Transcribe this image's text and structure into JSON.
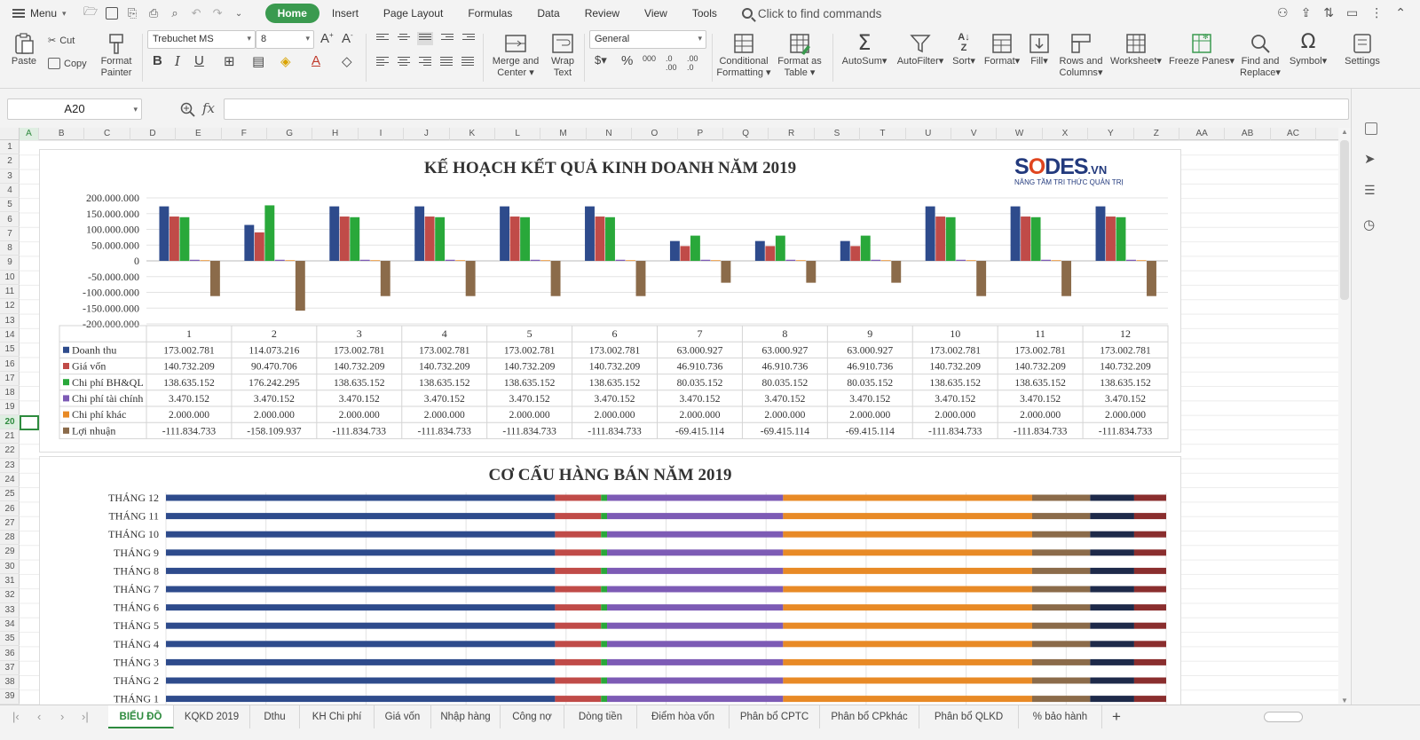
{
  "menubar": {
    "menu_label": "Menu",
    "tabs": [
      {
        "label": "Home",
        "active": true
      },
      {
        "label": "Insert"
      },
      {
        "label": "Page Layout"
      },
      {
        "label": "Formulas"
      },
      {
        "label": "Data"
      },
      {
        "label": "Review"
      },
      {
        "label": "View"
      },
      {
        "label": "Tools"
      }
    ],
    "find_commands": "Click to find commands"
  },
  "ribbon": {
    "paste": "Paste",
    "cut": "Cut",
    "copy": "Copy",
    "format_painter_1": "Format",
    "format_painter_2": "Painter",
    "font_name": "Trebuchet MS",
    "font_size": "8",
    "merge_1": "Merge and",
    "merge_2": "Center",
    "wrap_1": "Wrap",
    "wrap_2": "Text",
    "number_format": "General",
    "cond_1": "Conditional",
    "cond_2": "Formatting",
    "fmt_table_1": "Format as",
    "fmt_table_2": "Table",
    "autosum": "AutoSum",
    "autofilter": "AutoFilter",
    "sort": "Sort",
    "format": "Format",
    "fill": "Fill",
    "rows_cols_1": "Rows and",
    "rows_cols_2": "Columns",
    "worksheet": "Worksheet",
    "freeze": "Freeze Panes",
    "find_1": "Find and",
    "find_2": "Replace",
    "symbol": "Symbol",
    "settings": "Settings"
  },
  "formula_bar": {
    "name_box": "A20",
    "fx": "fx",
    "formula": ""
  },
  "columns": [
    "A",
    "B",
    "C",
    "D",
    "E",
    "F",
    "G",
    "H",
    "I",
    "J",
    "K",
    "L",
    "M",
    "N",
    "O",
    "P",
    "Q",
    "R",
    "S",
    "T",
    "U",
    "V",
    "W",
    "X",
    "Y",
    "Z",
    "AA",
    "AB",
    "AC"
  ],
  "selected_column": "A",
  "rows": [
    "1",
    "2",
    "3",
    "4",
    "5",
    "6",
    "7",
    "8",
    "9",
    "10",
    "11",
    "12",
    "13",
    "14",
    "15",
    "16",
    "17",
    "18",
    "19",
    "20",
    "21",
    "22",
    "23",
    "24",
    "25",
    "26",
    "27",
    "28",
    "29",
    "30",
    "31",
    "32",
    "33",
    "34",
    "35",
    "36",
    "37",
    "38",
    "39"
  ],
  "selected_row": "20",
  "logo": {
    "s": "S",
    "o": "O",
    "rest": "DES",
    "vn": ".VN",
    "tagline": "NÂNG TẦM TRI THỨC QUẢN TRỊ"
  },
  "colors": {
    "doanh_thu": "#2e4b8c",
    "gia_von": "#c04b48",
    "bh_ql": "#29a83a",
    "tai_chinh": "#7d5bb5",
    "khac": "#e88a26",
    "loi_nhuan": "#8b6b4a",
    "accent": "#3a9a4f"
  },
  "chart_data": [
    {
      "type": "bar",
      "title": "KẾ HOẠCH KẾT QUẢ KINH DOANH NĂM 2019",
      "categories": [
        "1",
        "2",
        "3",
        "4",
        "5",
        "6",
        "7",
        "8",
        "9",
        "10",
        "11",
        "12"
      ],
      "ylim": [
        -200000000,
        200000000
      ],
      "yticks": [
        "200.000.000",
        "150.000.000",
        "100.000.000",
        "50.000.000",
        "0",
        "-50.000.000",
        "-100.000.000",
        "-150.000.000",
        "-200.000.000"
      ],
      "grid": true,
      "legend": "data-table",
      "series": [
        {
          "name": "Doanh thu",
          "values": [
            173002781,
            114073216,
            173002781,
            173002781,
            173002781,
            173002781,
            63000927,
            63000927,
            63000927,
            173002781,
            173002781,
            173002781
          ],
          "labels": [
            "173.002.781",
            "114.073.216",
            "173.002.781",
            "173.002.781",
            "173.002.781",
            "173.002.781",
            "63.000.927",
            "63.000.927",
            "63.000.927",
            "173.002.781",
            "173.002.781",
            "173.002.781"
          ]
        },
        {
          "name": "Giá vốn",
          "values": [
            140732209,
            90470706,
            140732209,
            140732209,
            140732209,
            140732209,
            46910736,
            46910736,
            46910736,
            140732209,
            140732209,
            140732209
          ],
          "labels": [
            "140.732.209",
            "90.470.706",
            "140.732.209",
            "140.732.209",
            "140.732.209",
            "140.732.209",
            "46.910.736",
            "46.910.736",
            "46.910.736",
            "140.732.209",
            "140.732.209",
            "140.732.209"
          ]
        },
        {
          "name": "Chi phí BH&QL",
          "values": [
            138635152,
            176242295,
            138635152,
            138635152,
            138635152,
            138635152,
            80035152,
            80035152,
            80035152,
            138635152,
            138635152,
            138635152
          ],
          "labels": [
            "138.635.152",
            "176.242.295",
            "138.635.152",
            "138.635.152",
            "138.635.152",
            "138.635.152",
            "80.035.152",
            "80.035.152",
            "80.035.152",
            "138.635.152",
            "138.635.152",
            "138.635.152"
          ]
        },
        {
          "name": "Chi phí tài chính",
          "values": [
            3470152,
            3470152,
            3470152,
            3470152,
            3470152,
            3470152,
            3470152,
            3470152,
            3470152,
            3470152,
            3470152,
            3470152
          ],
          "labels": [
            "3.470.152",
            "3.470.152",
            "3.470.152",
            "3.470.152",
            "3.470.152",
            "3.470.152",
            "3.470.152",
            "3.470.152",
            "3.470.152",
            "3.470.152",
            "3.470.152",
            "3.470.152"
          ]
        },
        {
          "name": "Chi phí khác",
          "values": [
            2000000,
            2000000,
            2000000,
            2000000,
            2000000,
            2000000,
            2000000,
            2000000,
            2000000,
            2000000,
            2000000,
            2000000
          ],
          "labels": [
            "2.000.000",
            "2.000.000",
            "2.000.000",
            "2.000.000",
            "2.000.000",
            "2.000.000",
            "2.000.000",
            "2.000.000",
            "2.000.000",
            "2.000.000",
            "2.000.000",
            "2.000.000"
          ]
        },
        {
          "name": "Lợi nhuận",
          "values": [
            -111834733,
            -158109937,
            -111834733,
            -111834733,
            -111834733,
            -111834733,
            -69415114,
            -69415114,
            -69415114,
            -111834733,
            -111834733,
            -111834733
          ],
          "labels": [
            "-111.834.733",
            "-158.109.937",
            "-111.834.733",
            "-111.834.733",
            "-111.834.733",
            "-111.834.733",
            "-69.415.114",
            "-69.415.114",
            "-69.415.114",
            "-111.834.733",
            "-111.834.733",
            "-111.834.733"
          ]
        }
      ]
    },
    {
      "type": "bar",
      "orientation": "horizontal-stacked-100",
      "title": "CƠ CẤU HÀNG BÁN NĂM 2019",
      "categories": [
        "THÁNG 12",
        "THÁNG 11",
        "THÁNG 10",
        "THÁNG 9",
        "THÁNG 8",
        "THÁNG 7",
        "THÁNG 6",
        "THÁNG 5",
        "THÁNG 4",
        "THÁNG 3",
        "THÁNG 2",
        "THÁNG 1"
      ],
      "grid": true,
      "segments": [
        {
          "color": "#2e4b8c",
          "share": 0.389
        },
        {
          "color": "#c04b48",
          "share": 0.046
        },
        {
          "color": "#29a83a",
          "share": 0.006
        },
        {
          "color": "#7d5bb5",
          "share": 0.176
        },
        {
          "color": "#e88a26",
          "share": 0.249
        },
        {
          "color": "#8b6b4a",
          "share": 0.058
        },
        {
          "color": "#1e2a4a",
          "share": 0.044
        },
        {
          "color": "#8a2e2e",
          "share": 0.032
        }
      ]
    }
  ],
  "sheet_tabs": [
    "BIỂU ĐỒ",
    "KQKD 2019",
    "Dthu",
    "KH Chi phí",
    "Giá vốn",
    "Nhập hàng",
    "Công nợ",
    "Dòng tiền",
    "Điểm hòa vốn",
    "Phân bổ CPTC",
    "Phân bổ CPkhác",
    "Phân bổ QLKD",
    "% bảo hành"
  ],
  "active_sheet": "BIỂU ĐỒ",
  "add_sheet": "+"
}
